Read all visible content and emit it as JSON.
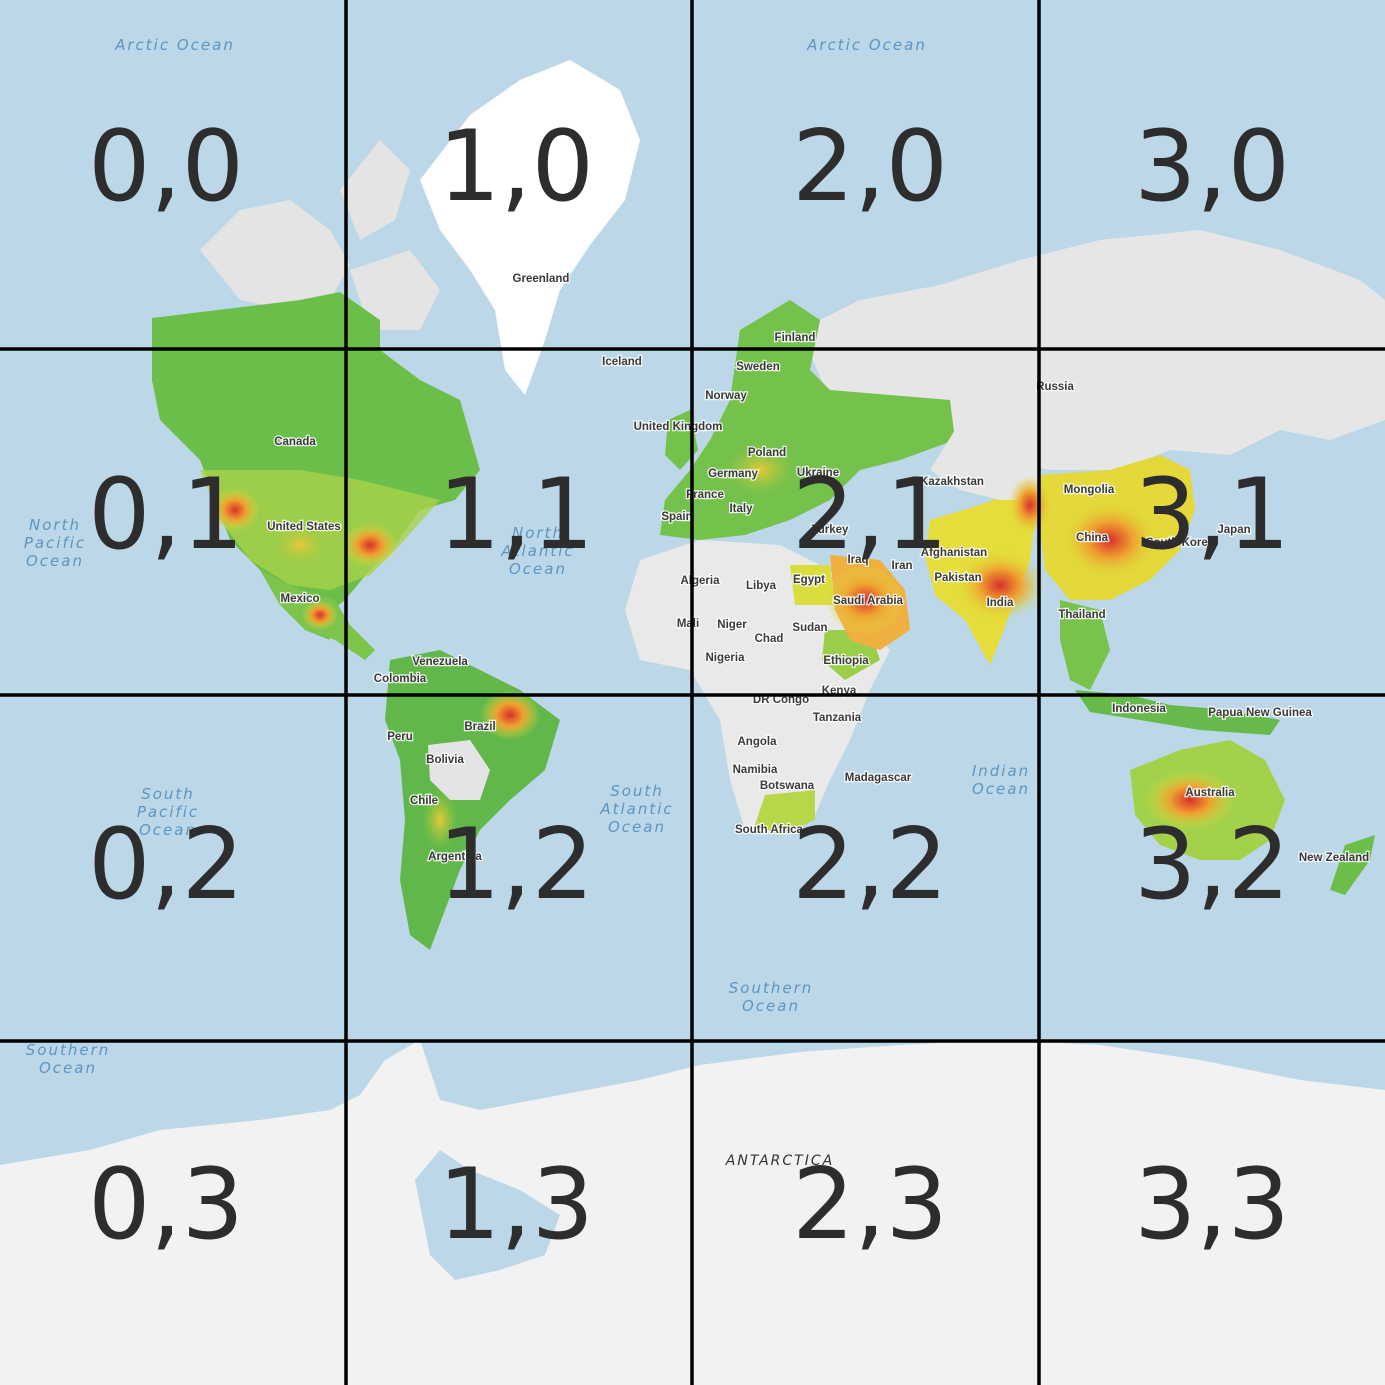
{
  "map": {
    "grid": {
      "columns": 4,
      "rows": 4
    },
    "colors": {
      "ocean": "#bcd8e8",
      "land_no_data": "#ececec",
      "land_polar": "#f2f2f2",
      "greenland": "#ffffff",
      "heat_low": "#5fb84a",
      "heat_mid": "#d8e23a",
      "heat_high": "#f0a030",
      "heat_max": "#d8322a",
      "grid": "#000000",
      "tile_label": "#2d2d2d"
    },
    "tiles": [
      "0,0",
      "1,0",
      "2,0",
      "3,0",
      "0,1",
      "1,1",
      "2,1",
      "3,1",
      "0,2",
      "1,2",
      "2,2",
      "3,2",
      "0,3",
      "1,3",
      "2,3",
      "3,3"
    ],
    "ocean_labels": {
      "arctic_w": [
        "Arctic Ocean"
      ],
      "arctic_e": [
        "Arctic Ocean"
      ],
      "north_pacific": [
        "North",
        "Pacific",
        "Ocean"
      ],
      "north_atlantic": [
        "North",
        "Atlantic",
        "Ocean"
      ],
      "south_pacific": [
        "South",
        "Pacific",
        "Ocean"
      ],
      "south_atlantic": [
        "South",
        "Atlantic",
        "Ocean"
      ],
      "indian": [
        "Indian",
        "Ocean"
      ],
      "southern_c": [
        "Southern",
        "Ocean"
      ],
      "southern_w": [
        "Southern",
        "Ocean"
      ]
    },
    "continent_label": "ANTARCTICA",
    "country_labels": {
      "greenland": "Greenland",
      "iceland": "Iceland",
      "canada": "Canada",
      "united_states": "United States",
      "mexico": "Mexico",
      "colombia": "Colombia",
      "venezuela": "Venezuela",
      "peru": "Peru",
      "brazil": "Brazil",
      "bolivia": "Bolivia",
      "chile": "Chile",
      "argentina": "Argentina",
      "finland": "Finland",
      "sweden": "Sweden",
      "norway": "Norway",
      "uk": "United Kingdom",
      "poland": "Poland",
      "germany": "Germany",
      "ukraine": "Ukraine",
      "france": "France",
      "spain": "Spain",
      "italy": "Italy",
      "turkey": "Turkey",
      "kazakhstan": "Kazakhstan",
      "russia": "Russia",
      "mongolia": "Mongolia",
      "china": "China",
      "japan": "Japan",
      "south_korea": "South Korea",
      "afghanistan": "Afghanistan",
      "iran": "Iran",
      "iraq": "Iraq",
      "pakistan": "Pakistan",
      "india": "India",
      "thailand": "Thailand",
      "algeria": "Algeria",
      "libya": "Libya",
      "egypt": "Egypt",
      "saudi_arabia": "Saudi Arabia",
      "mali": "Mali",
      "niger": "Niger",
      "chad": "Chad",
      "sudan": "Sudan",
      "nigeria": "Nigeria",
      "ethiopia": "Ethiopia",
      "kenya": "Kenya",
      "dr_congo": "DR Congo",
      "tanzania": "Tanzania",
      "angola": "Angola",
      "namibia": "Namibia",
      "botswana": "Botswana",
      "south_africa": "South Africa",
      "madagascar": "Madagascar",
      "indonesia": "Indonesia",
      "papua": "Papua New Guinea",
      "australia": "Australia",
      "new_zealand": "New Zealand"
    }
  }
}
